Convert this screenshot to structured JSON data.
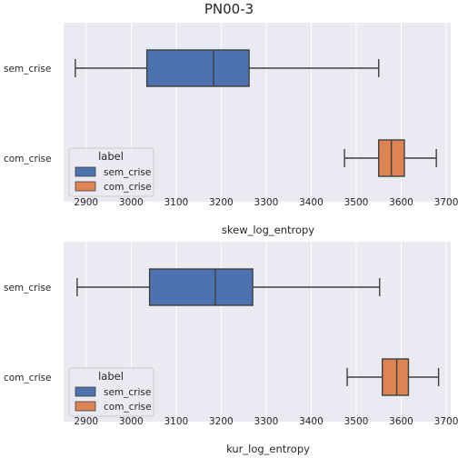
{
  "figure": {
    "title": "PN00-3"
  },
  "colors": {
    "panel_bg": "#eaeaf2",
    "grid": "#ffffff",
    "sem_crise": "#4c72b0",
    "com_crise": "#dd8452",
    "line": "#3f3f3f"
  },
  "chart_data": [
    {
      "type": "box",
      "orientation": "horizontal",
      "xlabel": "skew_log_entropy",
      "xlim": [
        2850,
        3710
      ],
      "xticks": [
        2900,
        3000,
        3100,
        3200,
        3300,
        3400,
        3500,
        3600,
        3700
      ],
      "categories": [
        "sem_crise",
        "com_crise"
      ],
      "grid": true,
      "legend": {
        "title": "label",
        "entries": [
          "sem_crise",
          "com_crise"
        ],
        "position": "lower-left"
      },
      "boxes": [
        {
          "label": "sem_crise",
          "whisker_low": 2876,
          "q1": 3035,
          "median": 3183,
          "q3": 3262,
          "whisker_high": 3550
        },
        {
          "label": "com_crise",
          "whisker_low": 3474,
          "q1": 3550,
          "median": 3578,
          "q3": 3607,
          "whisker_high": 3678
        }
      ]
    },
    {
      "type": "box",
      "orientation": "horizontal",
      "xlabel": "kur_log_entropy",
      "xlim": [
        2850,
        3710
      ],
      "xticks": [
        2900,
        3000,
        3100,
        3200,
        3300,
        3400,
        3500,
        3600,
        3700
      ],
      "categories": [
        "sem_crise",
        "com_crise"
      ],
      "grid": true,
      "legend": {
        "title": "label",
        "entries": [
          "sem_crise",
          "com_crise"
        ],
        "position": "lower-left"
      },
      "boxes": [
        {
          "label": "sem_crise",
          "whisker_low": 2880,
          "q1": 3041,
          "median": 3187,
          "q3": 3270,
          "whisker_high": 3552
        },
        {
          "label": "com_crise",
          "whisker_low": 3480,
          "q1": 3558,
          "median": 3590,
          "q3": 3616,
          "whisker_high": 3683
        }
      ]
    }
  ]
}
